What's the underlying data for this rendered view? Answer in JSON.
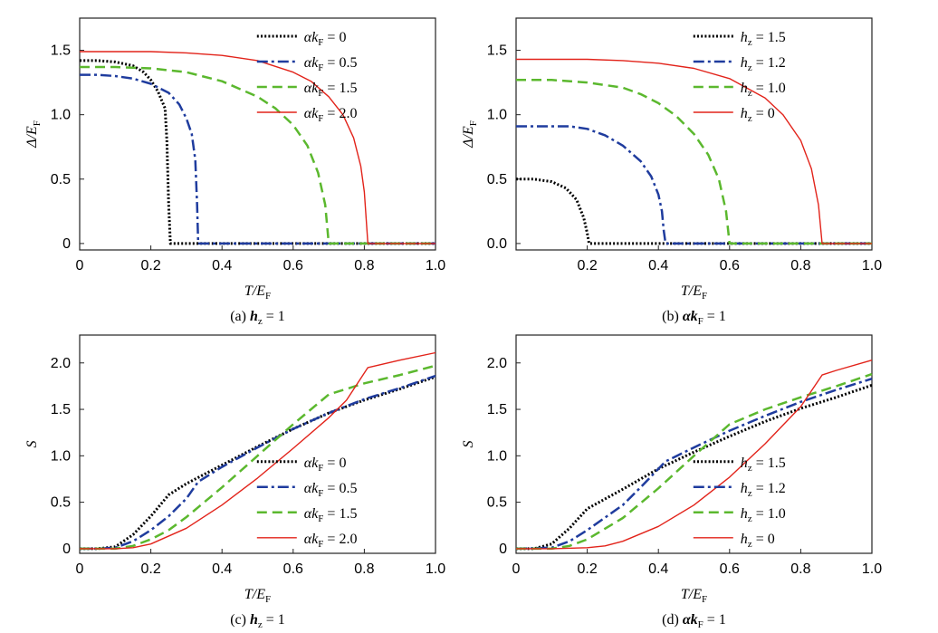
{
  "chart_data": [
    {
      "type": "line",
      "caption": "(a) hz = 1",
      "caption_parts": {
        "prefix": "(a) ",
        "var": "h",
        "sub": "z",
        "eq": " = 1"
      },
      "xlabel": "T/EF",
      "ylabel": "Δ/EF",
      "xlim": [
        0,
        1.0
      ],
      "ylim": [
        -0.05,
        1.75
      ],
      "xticks": [
        0,
        0.2,
        0.4,
        0.6,
        0.8,
        1.0
      ],
      "xtick_labels": [
        "0",
        "0.2",
        "0.4",
        "0.6",
        "0.8",
        "1.0"
      ],
      "yticks": [
        0,
        0.5,
        1.0,
        1.5
      ],
      "ytick_labels": [
        "0",
        "0.5",
        "1.0",
        "1.5"
      ],
      "legend_position": "top-right",
      "legend_var": "αkF",
      "series": [
        {
          "name": "αkF = 0",
          "value_label": "0",
          "color": "#000000",
          "style": "dotted",
          "x": [
            0,
            0.05,
            0.1,
            0.15,
            0.18,
            0.2,
            0.22,
            0.24,
            0.245,
            0.25,
            0.255,
            1.0
          ],
          "y": [
            1.42,
            1.42,
            1.41,
            1.38,
            1.33,
            1.27,
            1.18,
            1.05,
            0.8,
            0.3,
            0,
            0
          ]
        },
        {
          "name": "αkF = 0.5",
          "value_label": "0.5",
          "color": "#1f3c9e",
          "style": "dashdot",
          "x": [
            0,
            0.05,
            0.1,
            0.15,
            0.2,
            0.25,
            0.28,
            0.3,
            0.315,
            0.325,
            0.33,
            0.333,
            1.0
          ],
          "y": [
            1.31,
            1.31,
            1.3,
            1.28,
            1.24,
            1.17,
            1.08,
            0.97,
            0.85,
            0.65,
            0.3,
            0,
            0
          ]
        },
        {
          "name": "αkF = 1.5",
          "value_label": "1.5",
          "color": "#5bb82e",
          "style": "dashed",
          "x": [
            0,
            0.1,
            0.2,
            0.3,
            0.4,
            0.5,
            0.55,
            0.6,
            0.64,
            0.67,
            0.69,
            0.7,
            1.0
          ],
          "y": [
            1.37,
            1.37,
            1.36,
            1.33,
            1.26,
            1.14,
            1.05,
            0.92,
            0.76,
            0.55,
            0.3,
            0,
            0
          ]
        },
        {
          "name": "αkF = 2.0",
          "value_label": "2.0",
          "color": "#e2231a",
          "style": "solid",
          "x": [
            0,
            0.1,
            0.2,
            0.3,
            0.4,
            0.5,
            0.6,
            0.65,
            0.7,
            0.74,
            0.77,
            0.79,
            0.8,
            0.81,
            1.0
          ],
          "y": [
            1.49,
            1.49,
            1.49,
            1.48,
            1.46,
            1.42,
            1.33,
            1.26,
            1.14,
            1.0,
            0.82,
            0.6,
            0.4,
            0,
            0
          ]
        }
      ]
    },
    {
      "type": "line",
      "caption": "(b) αkF = 1",
      "caption_parts": {
        "prefix": "(b) ",
        "var": "αk",
        "sub": "F",
        "eq": " = 1"
      },
      "xlabel": "T/EF",
      "ylabel": "Δ/EF",
      "xlim": [
        0,
        1.0
      ],
      "ylim": [
        -0.05,
        1.75
      ],
      "xticks": [
        0.2,
        0.4,
        0.6,
        0.8,
        1.0
      ],
      "xtick_labels": [
        "0.2",
        "0.4",
        "0.6",
        "0.8",
        "1.0"
      ],
      "yticks": [
        0,
        0.5,
        1.0,
        1.5
      ],
      "ytick_labels": [
        "0.0",
        "0.5",
        "1.0",
        "1.5"
      ],
      "legend_position": "top-right",
      "legend_var": "hz",
      "series": [
        {
          "name": "hz = 1.5",
          "value_label": "1.5",
          "color": "#000000",
          "style": "dotted",
          "x": [
            0,
            0.05,
            0.1,
            0.14,
            0.17,
            0.19,
            0.2,
            0.205,
            1.0
          ],
          "y": [
            0.5,
            0.5,
            0.48,
            0.43,
            0.34,
            0.2,
            0.08,
            0,
            0
          ]
        },
        {
          "name": "hz = 1.2",
          "value_label": "1.2",
          "color": "#1f3c9e",
          "style": "dashdot",
          "x": [
            0,
            0.1,
            0.15,
            0.2,
            0.25,
            0.3,
            0.35,
            0.38,
            0.4,
            0.41,
            0.415,
            0.42,
            1.0
          ],
          "y": [
            0.91,
            0.91,
            0.91,
            0.89,
            0.84,
            0.76,
            0.64,
            0.52,
            0.38,
            0.25,
            0.1,
            0,
            0
          ]
        },
        {
          "name": "hz = 1.0",
          "value_label": "1.0",
          "color": "#5bb82e",
          "style": "dashed",
          "x": [
            0,
            0.1,
            0.2,
            0.3,
            0.35,
            0.4,
            0.45,
            0.5,
            0.54,
            0.57,
            0.59,
            0.6,
            1.0
          ],
          "y": [
            1.27,
            1.27,
            1.25,
            1.21,
            1.16,
            1.09,
            0.99,
            0.85,
            0.69,
            0.5,
            0.25,
            0,
            0
          ]
        },
        {
          "name": "hz = 0",
          "value_label": "0",
          "color": "#e2231a",
          "style": "solid",
          "x": [
            0,
            0.1,
            0.2,
            0.3,
            0.4,
            0.5,
            0.6,
            0.7,
            0.75,
            0.8,
            0.83,
            0.85,
            0.86,
            1.0
          ],
          "y": [
            1.43,
            1.43,
            1.43,
            1.42,
            1.4,
            1.36,
            1.28,
            1.13,
            1.0,
            0.8,
            0.58,
            0.3,
            0,
            0
          ]
        }
      ]
    },
    {
      "type": "line",
      "caption": "(c) hz = 1",
      "caption_parts": {
        "prefix": "(c) ",
        "var": "h",
        "sub": "z",
        "eq": " = 1"
      },
      "xlabel": "T/EF",
      "ylabel": "S",
      "xlim": [
        0,
        1.0
      ],
      "ylim": [
        -0.05,
        2.3
      ],
      "xticks": [
        0,
        0.2,
        0.4,
        0.6,
        0.8,
        1.0
      ],
      "xtick_labels": [
        "0",
        "0.2",
        "0.4",
        "0.6",
        "0.8",
        "1.0"
      ],
      "yticks": [
        0,
        0.5,
        1.0,
        1.5,
        2.0
      ],
      "ytick_labels": [
        "0",
        "0.5",
        "1.0",
        "1.5",
        "2.0"
      ],
      "legend_position": "bottom-right",
      "legend_var": "αkF",
      "series": [
        {
          "name": "αkF = 0",
          "value_label": "0",
          "color": "#000000",
          "style": "dotted",
          "x": [
            0,
            0.05,
            0.1,
            0.15,
            0.2,
            0.25,
            0.3,
            0.35,
            0.4,
            0.5,
            0.6,
            0.7,
            0.8,
            0.9,
            1.0
          ],
          "y": [
            0,
            0,
            0.02,
            0.15,
            0.35,
            0.58,
            0.7,
            0.8,
            0.9,
            1.1,
            1.29,
            1.46,
            1.6,
            1.72,
            1.85
          ]
        },
        {
          "name": "αkF = 0.5",
          "value_label": "0.5",
          "color": "#1f3c9e",
          "style": "dashdot",
          "x": [
            0,
            0.05,
            0.1,
            0.15,
            0.2,
            0.25,
            0.3,
            0.333,
            0.4,
            0.5,
            0.6,
            0.7,
            0.8,
            0.9,
            1.0
          ],
          "y": [
            0,
            0,
            0.01,
            0.08,
            0.2,
            0.35,
            0.54,
            0.72,
            0.88,
            1.09,
            1.29,
            1.46,
            1.61,
            1.73,
            1.86
          ]
        },
        {
          "name": "αkF = 1.5",
          "value_label": "1.5",
          "color": "#5bb82e",
          "style": "dashed",
          "x": [
            0,
            0.1,
            0.15,
            0.2,
            0.25,
            0.3,
            0.4,
            0.5,
            0.6,
            0.65,
            0.7,
            0.8,
            0.9,
            1.0
          ],
          "y": [
            0,
            0,
            0.03,
            0.1,
            0.2,
            0.34,
            0.66,
            1.0,
            1.34,
            1.5,
            1.66,
            1.78,
            1.87,
            1.97
          ]
        },
        {
          "name": "αkF = 2.0",
          "value_label": "2.0",
          "color": "#e2231a",
          "style": "solid",
          "x": [
            0,
            0.1,
            0.15,
            0.2,
            0.3,
            0.4,
            0.5,
            0.6,
            0.7,
            0.75,
            0.81,
            0.9,
            1.0
          ],
          "y": [
            0,
            0,
            0.01,
            0.05,
            0.22,
            0.47,
            0.76,
            1.08,
            1.41,
            1.6,
            1.95,
            2.03,
            2.11
          ]
        }
      ]
    },
    {
      "type": "line",
      "caption": "(d) αkF = 1",
      "caption_parts": {
        "prefix": "(d) ",
        "var": "αk",
        "sub": "F",
        "eq": " = 1"
      },
      "xlabel": "T/EF",
      "ylabel": "S",
      "xlim": [
        0,
        1.0
      ],
      "ylim": [
        -0.05,
        2.3
      ],
      "xticks": [
        0,
        0.2,
        0.4,
        0.6,
        0.8,
        1.0
      ],
      "xtick_labels": [
        "0",
        "0.2",
        "0.4",
        "0.6",
        "0.8",
        "1.0"
      ],
      "yticks": [
        0,
        0.5,
        1.0,
        1.5,
        2.0
      ],
      "ytick_labels": [
        "0",
        "0.5",
        "1.0",
        "1.5",
        "2.0"
      ],
      "legend_position": "bottom-right",
      "legend_var": "hz",
      "series": [
        {
          "name": "hz = 1.5",
          "value_label": "1.5",
          "color": "#000000",
          "style": "dotted",
          "x": [
            0,
            0.05,
            0.1,
            0.15,
            0.2,
            0.3,
            0.4,
            0.5,
            0.6,
            0.7,
            0.8,
            0.9,
            1.0
          ],
          "y": [
            0,
            0,
            0.05,
            0.22,
            0.43,
            0.64,
            0.86,
            1.04,
            1.21,
            1.37,
            1.51,
            1.63,
            1.76
          ]
        },
        {
          "name": "hz = 1.2",
          "value_label": "1.2",
          "color": "#1f3c9e",
          "style": "dashdot",
          "x": [
            0,
            0.1,
            0.15,
            0.2,
            0.3,
            0.35,
            0.42,
            0.5,
            0.6,
            0.7,
            0.8,
            0.9,
            1.0
          ],
          "y": [
            0,
            0.01,
            0.08,
            0.2,
            0.47,
            0.66,
            0.94,
            1.09,
            1.27,
            1.43,
            1.58,
            1.71,
            1.83
          ]
        },
        {
          "name": "hz = 1.0",
          "value_label": "1.0",
          "color": "#5bb82e",
          "style": "dashed",
          "x": [
            0,
            0.1,
            0.15,
            0.2,
            0.3,
            0.4,
            0.5,
            0.6,
            0.7,
            0.8,
            0.9,
            1.0
          ],
          "y": [
            0,
            0,
            0.03,
            0.1,
            0.33,
            0.65,
            1.0,
            1.34,
            1.5,
            1.63,
            1.75,
            1.88
          ]
        },
        {
          "name": "hz = 0",
          "value_label": "0",
          "color": "#e2231a",
          "style": "solid",
          "x": [
            0,
            0.1,
            0.2,
            0.25,
            0.3,
            0.4,
            0.5,
            0.6,
            0.7,
            0.8,
            0.86,
            0.9,
            1.0
          ],
          "y": [
            0,
            0,
            0.01,
            0.03,
            0.08,
            0.24,
            0.47,
            0.77,
            1.13,
            1.53,
            1.87,
            1.92,
            2.03
          ]
        }
      ]
    }
  ]
}
